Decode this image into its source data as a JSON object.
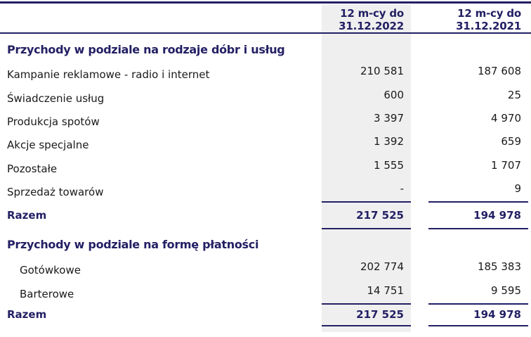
{
  "document": {
    "language": "pl",
    "kind": "financial-statement-revenue-table"
  },
  "header": {
    "col2022": {
      "line1": "12 m-cy do",
      "line2": "31.12.2022"
    },
    "col2021": {
      "line1": "12 m-cy do",
      "line2": "31.12.2021"
    }
  },
  "sections": [
    {
      "title": "Przychody w podziale na rodzaje dóbr i usług",
      "rows": [
        {
          "label": "Kampanie reklamowe - radio i internet",
          "v2022": "210 581",
          "v2021": "187 608"
        },
        {
          "label": "Świadczenie usług",
          "v2022": "600",
          "v2021": "25"
        },
        {
          "label": "Produkcja spotów",
          "v2022": "3 397",
          "v2021": "4 970"
        },
        {
          "label": "Akcje specjalne",
          "v2022": "1 392",
          "v2021": "659"
        },
        {
          "label": "Pozostałe",
          "v2022": "1 555",
          "v2021": "1 707"
        },
        {
          "label": "Sprzedaż towarów",
          "v2022": "-",
          "v2021": "9"
        }
      ],
      "total": {
        "label": "Razem",
        "v2022": "217 525",
        "v2021": "194 978"
      }
    },
    {
      "title": "Przychody w podziale na formę płatności",
      "rows": [
        {
          "label": "Gotówkowe",
          "v2022": "202 774",
          "v2021": "185 383"
        },
        {
          "label": "Barterowe",
          "v2022": "14 751",
          "v2021": "9 595"
        }
      ],
      "total": {
        "label": "Razem",
        "v2022": "217 525",
        "v2021": "194 978"
      }
    }
  ],
  "colors": {
    "accent_navy": "#232064",
    "body_text": "#1a1a1a",
    "column_2022_background": "#efefef"
  }
}
